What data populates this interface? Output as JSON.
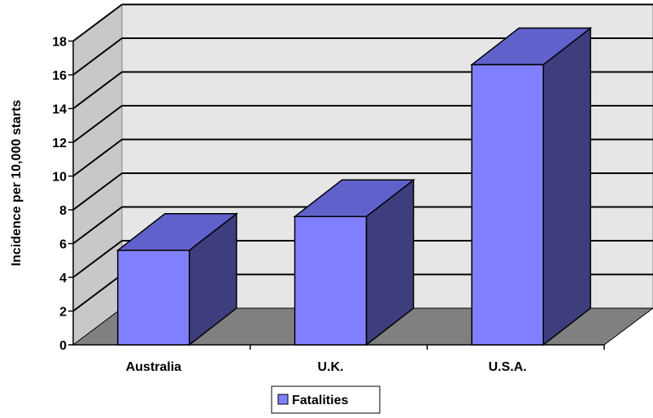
{
  "chart_data": {
    "type": "bar",
    "categories": [
      "Australia",
      "U.K.",
      "U.S.A."
    ],
    "series": [
      {
        "name": "Fatalities",
        "values": [
          5.6,
          7.6,
          16.6
        ]
      }
    ],
    "title": "",
    "xlabel": "",
    "ylabel": "Incidence per 10,000 starts",
    "ylim": [
      0,
      18
    ],
    "yticks": [
      "0",
      "2",
      "4",
      "6",
      "8",
      "10",
      "12",
      "14",
      "16",
      "18"
    ],
    "grid": true,
    "legend_position": "bottom",
    "three_d": true,
    "colors": {
      "bar_front": "#8080FF",
      "bar_top": "#6161CC",
      "bar_side": "#3E3E7E",
      "wall": "#E6E6E6",
      "floor": "#808080",
      "side_wall": "#C8C8C8"
    }
  }
}
